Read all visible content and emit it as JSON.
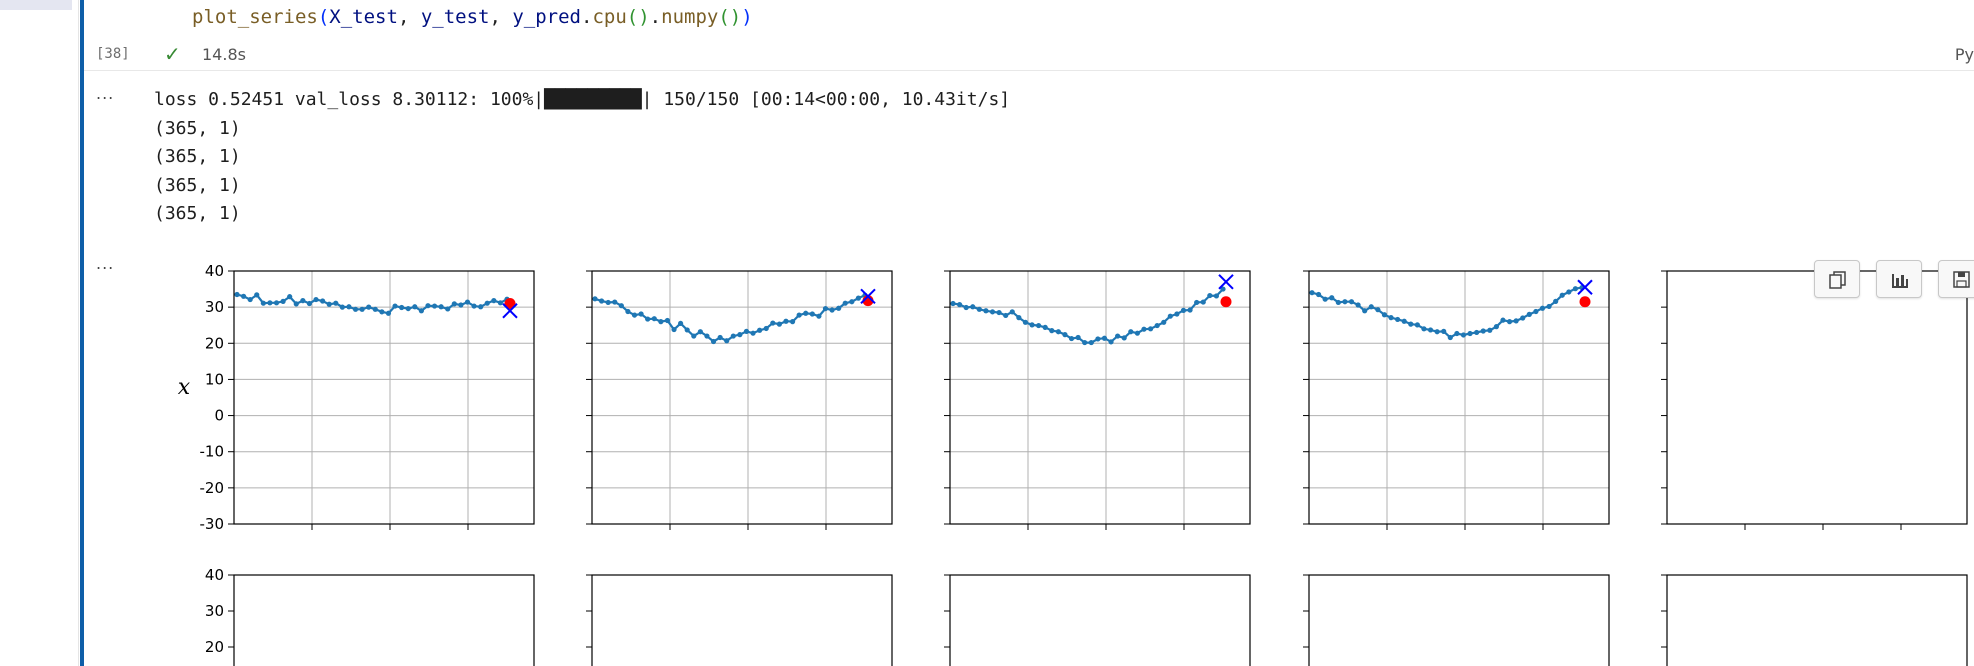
{
  "cell": {
    "code_line": {
      "fn": "plot_series",
      "open": "(",
      "arg1": "X_test",
      "sep1": ", ",
      "arg2": "y_test",
      "sep2": ", ",
      "arg3": "y_pred",
      "dot1": ".",
      "call1": "cpu",
      "paren1": "()",
      "dot2": ".",
      "call2": "numpy",
      "paren2": "()",
      "close": ")"
    },
    "execution_count": "[38]",
    "status_icon": "check-icon",
    "execution_time": "14.8s",
    "language_label": "Py"
  },
  "output": {
    "ellipsis": "...",
    "stream_lines": [
      "loss 0.52451 val_loss 8.30112: 100%|█████████| 150/150 [00:14<00:00, 10.43it/s]",
      "(365, 1)",
      "(365, 1)",
      "(365, 1)",
      "(365, 1)"
    ]
  },
  "toolbar": {
    "icons": [
      "copy-icon",
      "bar-chart-icon",
      "save-icon"
    ]
  },
  "colors": {
    "series": "#1f77b4",
    "target": "#ff0000",
    "prediction": "#0000ff",
    "grid": "#b0b0b0",
    "focus": "#0e5ea8"
  },
  "chart_data": {
    "type": "line",
    "ylabel": "x",
    "ylim": [
      -30,
      40
    ],
    "yticks": [
      40,
      30,
      20,
      10,
      0,
      -10,
      -20,
      -30
    ],
    "row2_yticks": [
      40,
      30,
      20
    ],
    "grid": true,
    "series": [
      {
        "values": [
          33.5,
          33.0,
          32.1,
          33.4,
          31.1,
          31.2,
          31.2,
          31.6,
          32.9,
          30.9,
          31.8,
          31.0,
          32.1,
          31.7,
          30.8,
          31.1,
          30.0,
          30.1,
          29.4,
          29.4,
          30.0,
          29.4,
          28.7,
          28.3,
          30.3,
          29.9,
          29.6,
          30.1,
          29.0,
          30.4,
          30.3,
          30.1,
          29.5,
          30.9,
          30.6,
          31.4,
          30.3,
          30.1,
          31.1,
          31.8,
          31.2,
          32.2
        ],
        "target": 31.0,
        "prediction": 29.0
      },
      {
        "values": [
          32.3,
          31.7,
          31.3,
          31.4,
          30.4,
          28.8,
          27.8,
          28.1,
          26.7,
          26.8,
          26.0,
          26.3,
          23.8,
          25.5,
          23.7,
          22.0,
          23.2,
          22.0,
          20.5,
          21.6,
          20.7,
          22.0,
          22.4,
          23.3,
          22.8,
          23.6,
          24.1,
          25.6,
          25.3,
          26.1,
          26.0,
          27.8,
          28.3,
          28.1,
          27.5,
          29.6,
          29.2,
          29.7,
          31.1,
          31.5,
          32.5,
          33.3
        ],
        "target": 31.8,
        "prediction": 33.0
      },
      {
        "values": [
          31.0,
          30.7,
          29.9,
          30.1,
          29.4,
          29.0,
          28.7,
          28.5,
          27.7,
          28.7,
          27.1,
          25.8,
          25.1,
          24.9,
          24.4,
          23.5,
          23.2,
          22.4,
          21.3,
          21.6,
          20.2,
          20.2,
          21.2,
          21.4,
          20.4,
          22.0,
          21.5,
          23.2,
          22.8,
          23.9,
          24.0,
          24.9,
          25.8,
          27.5,
          28.1,
          29.1,
          29.2,
          31.3,
          31.4,
          33.2,
          33.1,
          35.0
        ],
        "target": 31.5,
        "prediction": 37.0
      },
      {
        "values": [
          34.0,
          33.5,
          32.2,
          32.6,
          31.3,
          31.5,
          31.5,
          30.6,
          29.0,
          30.1,
          29.3,
          27.9,
          27.1,
          26.6,
          26.1,
          25.3,
          25.1,
          24.0,
          23.7,
          23.2,
          23.3,
          21.6,
          22.7,
          22.3,
          22.7,
          23.0,
          23.4,
          23.6,
          24.6,
          26.4,
          26.0,
          26.2,
          27.0,
          28.0,
          28.8,
          29.7,
          30.2,
          31.6,
          33.3,
          34.2,
          35.1,
          35.4
        ],
        "target": 31.5,
        "prediction": 35.5
      }
    ]
  }
}
